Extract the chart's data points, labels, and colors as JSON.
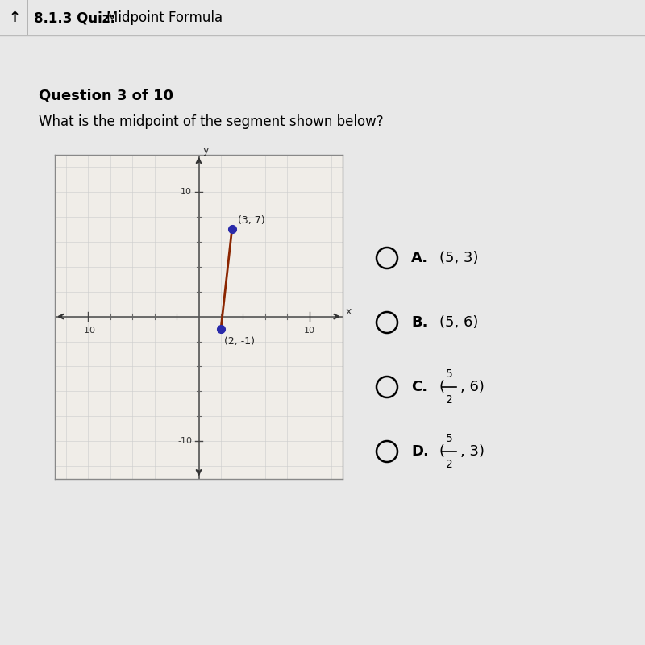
{
  "bg_color": "#e8e8e8",
  "header_bg": "#e0e0e0",
  "header_bold": "8.1.3 Quiz:",
  "header_normal": "  Midpoint Formula",
  "question_bold": "Question 3 of 10",
  "question_text": "What is the midpoint of the segment shown below?",
  "point1": [
    3,
    7
  ],
  "point2": [
    2,
    -1
  ],
  "point1_label": "(3, 7)",
  "point2_label": "(2, -1)",
  "point1_color": "#2a2aaa",
  "point2_color": "#2a2aaa",
  "segment_color": "#8b2500",
  "graph_bg": "#f5f5f5",
  "axis_lim": [
    -12,
    12
  ],
  "tick_labels": [
    -10,
    10
  ],
  "choice_letters": [
    "A.",
    "B.",
    "C.",
    "D."
  ],
  "choice_a_text": "(5, 3)",
  "choice_b_text": "(5, 6)",
  "choice_c_suffix": ", 6)",
  "choice_d_suffix": ", 3)"
}
